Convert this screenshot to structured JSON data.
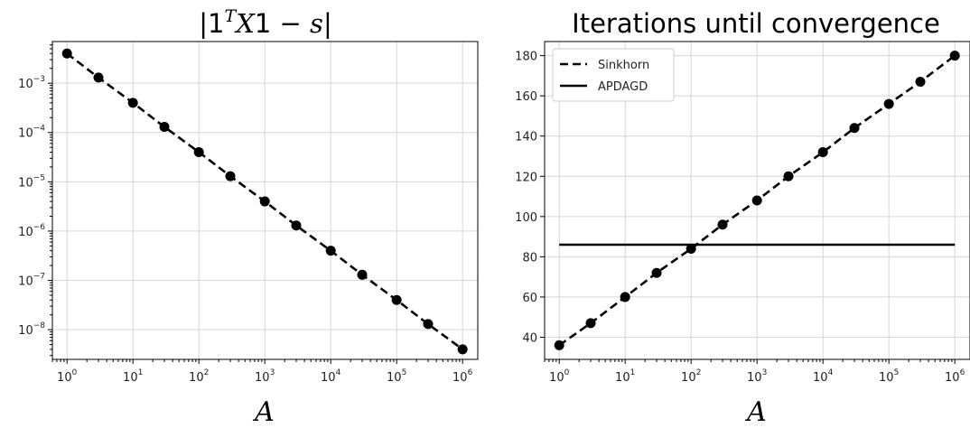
{
  "chart_data": [
    {
      "type": "line",
      "title": "|1ᵀX1 − s|",
      "title_parts": {
        "left": "|1",
        "sup": "T",
        "var": "X",
        "mid": "1 − ",
        "var2": "s",
        "right": "|"
      },
      "xlabel": "A",
      "ylabel": "",
      "x_scale": "log",
      "y_scale": "log",
      "xlim": [
        0.6,
        1700000.0
      ],
      "ylim": [
        2.5e-09,
        0.007
      ],
      "grid": true,
      "x_ticks": [
        1,
        10,
        100,
        1000,
        10000,
        100000,
        1000000
      ],
      "x_tick_labels": [
        {
          "base": "10",
          "exp": "0"
        },
        {
          "base": "10",
          "exp": "1"
        },
        {
          "base": "10",
          "exp": "2"
        },
        {
          "base": "10",
          "exp": "3"
        },
        {
          "base": "10",
          "exp": "4"
        },
        {
          "base": "10",
          "exp": "5"
        },
        {
          "base": "10",
          "exp": "6"
        }
      ],
      "y_ticks": [
        1e-08,
        1e-07,
        1e-06,
        1e-05,
        0.0001,
        0.001
      ],
      "y_tick_labels": [
        {
          "base": "10",
          "exp": "−8"
        },
        {
          "base": "10",
          "exp": "−7"
        },
        {
          "base": "10",
          "exp": "−6"
        },
        {
          "base": "10",
          "exp": "−5"
        },
        {
          "base": "10",
          "exp": "−4"
        },
        {
          "base": "10",
          "exp": "−3"
        }
      ],
      "series": [
        {
          "style": "dashed-markers",
          "x": [
            1,
            3,
            10,
            30,
            100,
            300,
            1000,
            3000,
            10000,
            30000,
            100000,
            300000,
            1000000
          ],
          "y": [
            0.004,
            0.0013,
            0.0004,
            0.00013,
            4e-05,
            1.3e-05,
            4e-06,
            1.3e-06,
            4e-07,
            1.3e-07,
            4e-08,
            1.3e-08,
            4e-09
          ]
        }
      ]
    },
    {
      "type": "line",
      "title": "Iterations until convergence",
      "xlabel": "A",
      "ylabel": "",
      "x_scale": "log",
      "y_scale": "linear",
      "xlim": [
        0.6,
        1700000.0
      ],
      "ylim": [
        29,
        187
      ],
      "grid": true,
      "legend": "top-left",
      "x_ticks": [
        1,
        10,
        100,
        1000,
        10000,
        100000,
        1000000
      ],
      "x_tick_labels": [
        {
          "base": "10",
          "exp": "0"
        },
        {
          "base": "10",
          "exp": "1"
        },
        {
          "base": "10",
          "exp": "2"
        },
        {
          "base": "10",
          "exp": "3"
        },
        {
          "base": "10",
          "exp": "4"
        },
        {
          "base": "10",
          "exp": "5"
        },
        {
          "base": "10",
          "exp": "6"
        }
      ],
      "y_ticks": [
        40,
        60,
        80,
        100,
        120,
        140,
        160,
        180
      ],
      "y_tick_labels": [
        "40",
        "60",
        "80",
        "100",
        "120",
        "140",
        "160",
        "180"
      ],
      "series": [
        {
          "name": "Sinkhorn",
          "style": "dashed-markers",
          "x": [
            1,
            3,
            10,
            30,
            100,
            300,
            1000,
            3000,
            10000,
            30000,
            100000,
            300000,
            1000000
          ],
          "y": [
            36,
            47,
            60,
            72,
            84,
            96,
            108,
            120,
            132,
            144,
            156,
            167,
            180
          ]
        },
        {
          "name": "APDAGD",
          "style": "solid",
          "x": [
            1,
            1000000
          ],
          "y": [
            86,
            86
          ]
        }
      ]
    }
  ]
}
